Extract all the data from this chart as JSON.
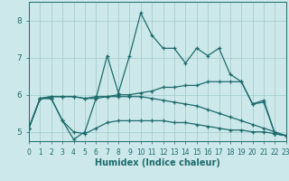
{
  "title": "",
  "xlabel": "Humidex (Indice chaleur)",
  "xlim": [
    0,
    23
  ],
  "ylim": [
    4.75,
    8.5
  ],
  "yticks": [
    5,
    6,
    7,
    8
  ],
  "xticks": [
    0,
    1,
    2,
    3,
    4,
    5,
    6,
    7,
    8,
    9,
    10,
    11,
    12,
    13,
    14,
    15,
    16,
    17,
    18,
    19,
    20,
    21,
    22,
    23
  ],
  "bg_color": "#cce8ea",
  "line_color": "#1e6b6b",
  "grid_color": "#a0c8c8",
  "series": [
    [
      5.1,
      5.9,
      5.9,
      5.3,
      4.8,
      5.0,
      5.9,
      7.05,
      6.05,
      7.05,
      8.2,
      7.6,
      7.25,
      7.25,
      6.85,
      7.25,
      7.05,
      7.25,
      6.55,
      6.35,
      5.75,
      5.85,
      4.95,
      4.9
    ],
    [
      5.1,
      5.9,
      5.95,
      5.95,
      5.95,
      5.9,
      5.95,
      5.95,
      6.0,
      6.0,
      6.05,
      6.1,
      6.2,
      6.2,
      6.25,
      6.25,
      6.35,
      6.35,
      6.35,
      6.35,
      5.75,
      5.8,
      4.95,
      4.9
    ],
    [
      5.1,
      5.9,
      5.9,
      5.3,
      5.0,
      4.95,
      5.1,
      5.25,
      5.3,
      5.3,
      5.3,
      5.3,
      5.3,
      5.25,
      5.25,
      5.2,
      5.15,
      5.1,
      5.05,
      5.05,
      5.0,
      5.0,
      4.95,
      4.9
    ],
    [
      5.1,
      5.9,
      5.95,
      5.95,
      5.95,
      5.9,
      5.9,
      5.95,
      5.95,
      5.95,
      5.95,
      5.9,
      5.85,
      5.8,
      5.75,
      5.7,
      5.6,
      5.5,
      5.4,
      5.3,
      5.2,
      5.1,
      5.0,
      4.9
    ]
  ],
  "xlabel_fontsize": 7,
  "tick_fontsize": 5.5,
  "ytick_fontsize": 6.5,
  "linewidth": 0.9,
  "markersize": 3.5
}
